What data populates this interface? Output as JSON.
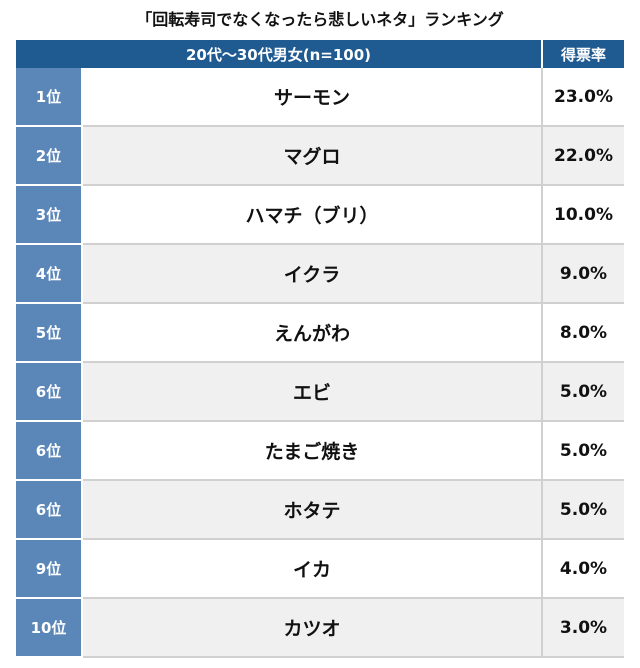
{
  "title": "「回転寿司でなくなったら悲しいネタ」ランキング",
  "chart_data": {
    "type": "table",
    "title": "「回転寿司でなくなったら悲しいネタ」ランキング",
    "header": {
      "subject": "20代〜30代男女(n=100)",
      "value_label": "得票率"
    },
    "rows": [
      {
        "rank": "1位",
        "item": "サーモン",
        "value": "23.0%"
      },
      {
        "rank": "2位",
        "item": "マグロ",
        "value": "22.0%"
      },
      {
        "rank": "3位",
        "item": "ハマチ（ブリ）",
        "value": "10.0%"
      },
      {
        "rank": "4位",
        "item": "イクラ",
        "value": "9.0%"
      },
      {
        "rank": "5位",
        "item": "えんがわ",
        "value": "8.0%"
      },
      {
        "rank": "6位",
        "item": "エビ",
        "value": "5.0%"
      },
      {
        "rank": "6位",
        "item": "たまご焼き",
        "value": "5.0%"
      },
      {
        "rank": "6位",
        "item": "ホタテ",
        "value": "5.0%"
      },
      {
        "rank": "9位",
        "item": "イカ",
        "value": "4.0%"
      },
      {
        "rank": "10位",
        "item": "カツオ",
        "value": "3.0%"
      }
    ]
  },
  "colors": {
    "header_bg": "#1f5a91",
    "rank_bg": "#5b86b8",
    "row_alt_bg": "#f0f0f0"
  }
}
